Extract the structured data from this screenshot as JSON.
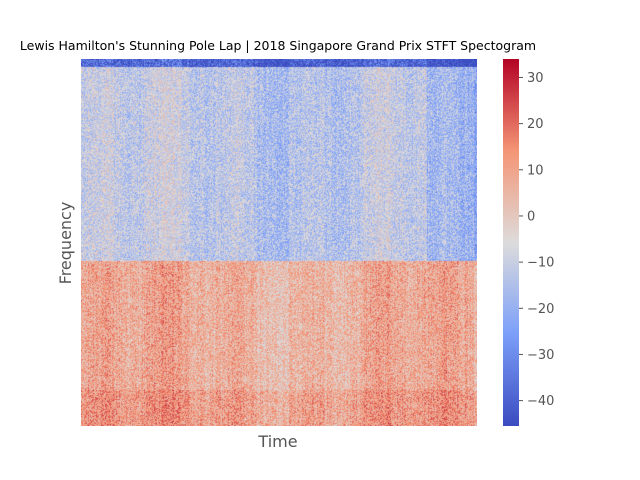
{
  "chart_data": {
    "type": "heatmap",
    "title": "Lewis Hamilton's Stunning Pole Lap | 2018 Singapore Grand Prix STFT Spectogram",
    "xlabel": "Time",
    "ylabel": "Frequency",
    "x_ticks": [],
    "y_ticks": [],
    "colorbar": {
      "colormap": "coolwarm",
      "range": [
        -45.5,
        34
      ],
      "ticks": [
        30,
        20,
        10,
        0,
        -10,
        -20,
        -30,
        -40
      ],
      "tick_labels": [
        "30",
        "20",
        "10",
        "0",
        "−10",
        "−20",
        "−30",
        "−40"
      ]
    },
    "description_of_field": {
      "low_frequency_band_mean_db": 7,
      "high_frequency_band_mean_db": -12,
      "top_edge_db": -40
    },
    "colors": {
      "low": "#3b4cc0",
      "mid": "#dddcdc",
      "high": "#b40426"
    }
  }
}
